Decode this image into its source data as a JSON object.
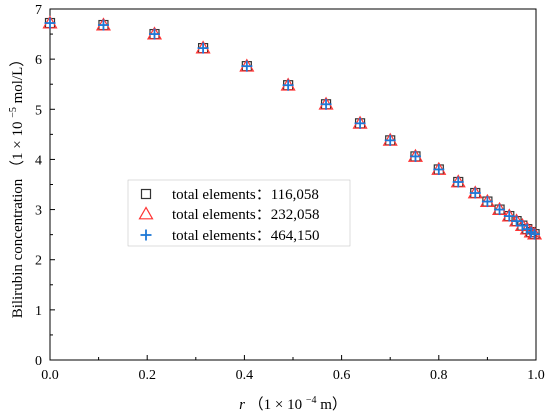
{
  "chart_data": {
    "type": "scatter",
    "xlabel_parts": [
      "r",
      "（1 × 10",
      "−4",
      " m）"
    ],
    "ylabel_parts": [
      "Bilirubin concentration （1 × 10",
      "−5",
      " mol/L）"
    ],
    "xlim": [
      0,
      1.0
    ],
    "ylim": [
      0,
      7
    ],
    "x_ticks": [
      "0.0",
      "0.2",
      "0.4",
      "0.6",
      "0.8",
      "1.0"
    ],
    "y_ticks": [
      "0",
      "1",
      "2",
      "3",
      "4",
      "5",
      "6",
      "7"
    ],
    "grid": false,
    "legend_position": "center-left",
    "series": [
      {
        "name": "total elements：116,058",
        "marker": "square",
        "color": "#333333",
        "x": [
          0.0,
          0.11,
          0.215,
          0.315,
          0.405,
          0.49,
          0.568,
          0.638,
          0.7,
          0.752,
          0.8,
          0.84,
          0.875,
          0.9,
          0.925,
          0.945,
          0.96,
          0.972,
          0.982,
          0.99,
          0.997
        ],
        "y": [
          6.72,
          6.68,
          6.5,
          6.22,
          5.86,
          5.48,
          5.1,
          4.72,
          4.38,
          4.06,
          3.8,
          3.55,
          3.33,
          3.16,
          3.0,
          2.87,
          2.77,
          2.68,
          2.61,
          2.55,
          2.51
        ]
      },
      {
        "name": "total elements：232,058",
        "marker": "triangle",
        "color": "#ff3333",
        "x": [
          0.0,
          0.11,
          0.215,
          0.315,
          0.405,
          0.49,
          0.568,
          0.638,
          0.7,
          0.752,
          0.8,
          0.84,
          0.875,
          0.9,
          0.925,
          0.945,
          0.96,
          0.972,
          0.982,
          0.99,
          0.997
        ],
        "y": [
          6.72,
          6.68,
          6.5,
          6.22,
          5.86,
          5.48,
          5.1,
          4.72,
          4.38,
          4.06,
          3.8,
          3.55,
          3.33,
          3.16,
          3.0,
          2.87,
          2.77,
          2.68,
          2.61,
          2.55,
          2.51
        ]
      },
      {
        "name": "total elements：464,150",
        "marker": "plus",
        "color": "#1e78d6",
        "x": [
          0.0,
          0.11,
          0.215,
          0.315,
          0.405,
          0.49,
          0.568,
          0.638,
          0.7,
          0.752,
          0.8,
          0.84,
          0.875,
          0.9,
          0.925,
          0.945,
          0.96,
          0.972,
          0.982,
          0.99,
          0.997
        ],
        "y": [
          6.72,
          6.68,
          6.5,
          6.22,
          5.86,
          5.48,
          5.1,
          4.72,
          4.38,
          4.06,
          3.8,
          3.55,
          3.33,
          3.16,
          3.0,
          2.87,
          2.77,
          2.68,
          2.61,
          2.55,
          2.51
        ]
      }
    ]
  }
}
